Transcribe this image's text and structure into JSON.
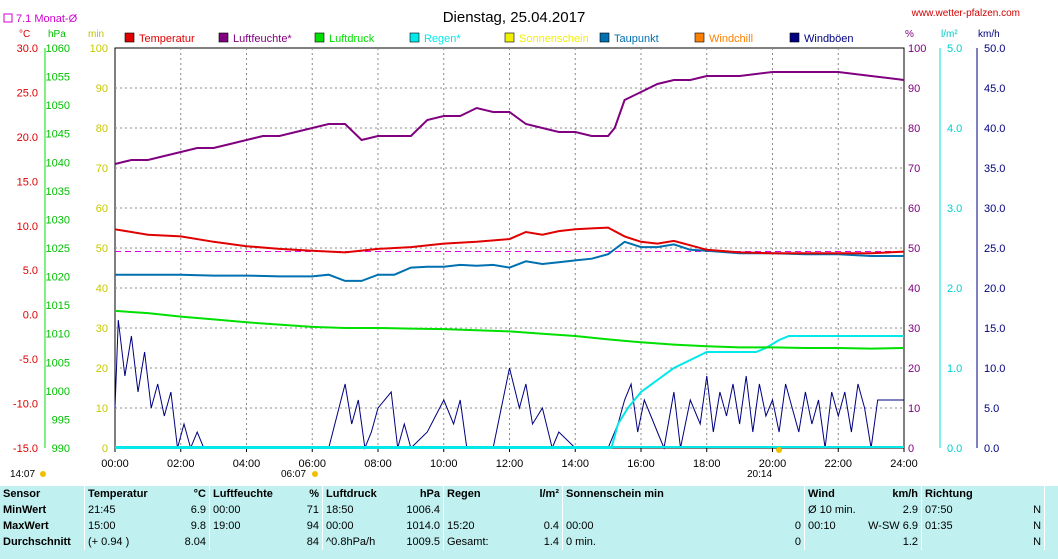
{
  "header": {
    "title": "Dienstag, 25.04.2017",
    "website": "www.wetter-pfalzen.com",
    "monthly_avg_label": "7.1 Monat-Ø"
  },
  "axis_units": {
    "temp": "°C",
    "pressure": "hPa",
    "minutes": "min",
    "humidity": "%",
    "rain": "l/m²",
    "wind": "km/h"
  },
  "axis_ticks": {
    "temp": [
      "30.0",
      "25.0",
      "20.0",
      "15.0",
      "10.0",
      "5.0",
      "0.0",
      "-5.0",
      "-10.0",
      "-15.0"
    ],
    "pressure": [
      "1060",
      "1055",
      "1050",
      "1045",
      "1040",
      "1035",
      "1030",
      "1025",
      "1020",
      "1015",
      "1010",
      "1005",
      "1000",
      "995",
      "990"
    ],
    "minutes": [
      "100",
      "90",
      "80",
      "70",
      "60",
      "50",
      "40",
      "30",
      "20",
      "10",
      "0"
    ],
    "humidity": [
      "100",
      "90",
      "80",
      "70",
      "60",
      "50",
      "40",
      "30",
      "20",
      "10",
      "0"
    ],
    "rain": [
      "5.0",
      "4.0",
      "3.0",
      "2.0",
      "1.0",
      "0.0"
    ],
    "wind": [
      "50.0",
      "45.0",
      "40.0",
      "35.0",
      "30.0",
      "25.0",
      "20.0",
      "15.0",
      "10.0",
      "5.0",
      "0.0"
    ],
    "time": [
      "00:00",
      "02:00",
      "04:00",
      "06:00",
      "08:00",
      "10:00",
      "12:00",
      "14:00",
      "16:00",
      "18:00",
      "20:00",
      "22:00",
      "24:00"
    ]
  },
  "sun_markers": {
    "sunrise": "06:07",
    "sunset": "20:14",
    "sunshine_start": "14:07"
  },
  "legend": [
    {
      "label": "Temperatur",
      "color": "#e00000"
    },
    {
      "label": "Luftfeuchte*",
      "color": "#800080"
    },
    {
      "label": "Luftdruck",
      "color": "#00e000"
    },
    {
      "label": "Regen*",
      "color": "#00e8e8"
    },
    {
      "label": "Sonnenschein",
      "color": "#f0f000"
    },
    {
      "label": "Taupunkt",
      "color": "#0070b0"
    },
    {
      "label": "Windchill",
      "color": "#ff8000"
    },
    {
      "label": "Windböen",
      "color": "#000080"
    }
  ],
  "chart_data": {
    "type": "line",
    "x_range_hours": [
      0,
      24
    ],
    "grid": true,
    "reference_lines": [
      {
        "name": "7.1 Monat-Ø",
        "axis": "temp",
        "value": 7.1
      }
    ],
    "series": [
      {
        "name": "Temperatur",
        "axis": "temp",
        "x": [
          0,
          1,
          2,
          3,
          4,
          5,
          6,
          7,
          8,
          9,
          10,
          11,
          12,
          12.5,
          13,
          13.5,
          14,
          14.5,
          15,
          15.5,
          16,
          16.5,
          17,
          17.5,
          18,
          19,
          20,
          21,
          22,
          23,
          24
        ],
        "y": [
          9.6,
          9.0,
          8.8,
          8.2,
          7.7,
          7.4,
          7.2,
          7.0,
          7.4,
          7.6,
          8.0,
          8.2,
          8.5,
          9.3,
          9.0,
          9.4,
          9.6,
          9.7,
          9.8,
          8.8,
          8.2,
          8.0,
          8.3,
          7.8,
          7.3,
          7.0,
          6.9,
          6.9,
          6.9,
          6.9,
          7.1
        ]
      },
      {
        "name": "Luftfeuchte*",
        "axis": "humidity",
        "x": [
          0,
          0.5,
          1,
          1.5,
          2,
          2.5,
          3,
          3.5,
          4,
          4.5,
          5,
          5.5,
          6,
          6.5,
          7,
          7.5,
          8,
          8.5,
          9,
          9.5,
          10,
          10.5,
          11,
          11.5,
          12,
          12.5,
          13,
          13.5,
          14,
          14.5,
          15,
          15.2,
          15.5,
          16,
          16.5,
          17,
          17.5,
          18,
          19,
          20,
          21,
          22,
          23,
          24
        ],
        "y": [
          71,
          72,
          72,
          73,
          74,
          75,
          75,
          76,
          77,
          78,
          78,
          79,
          80,
          81,
          81,
          77,
          78,
          78,
          78,
          82,
          83,
          83,
          85,
          84,
          84,
          81,
          80,
          79,
          79,
          78,
          78,
          80,
          87,
          89,
          91,
          92,
          92,
          93,
          93,
          94,
          94,
          94,
          93,
          92
        ]
      },
      {
        "name": "Luftdruck",
        "axis": "pressure",
        "x": [
          0,
          1,
          2,
          3,
          4,
          5,
          6,
          7,
          8,
          9,
          10,
          11,
          12,
          13,
          14,
          15,
          16,
          17,
          18,
          19,
          20,
          21,
          22,
          23,
          24
        ],
        "y": [
          1014.0,
          1013.6,
          1013.0,
          1012.5,
          1012.0,
          1011.6,
          1011.2,
          1011.0,
          1011.0,
          1010.9,
          1010.8,
          1010.6,
          1010.4,
          1010.0,
          1009.6,
          1009.0,
          1008.5,
          1008.1,
          1007.8,
          1007.6,
          1007.6,
          1007.5,
          1007.5,
          1007.4,
          1007.5
        ]
      },
      {
        "name": "Regen*",
        "axis": "rain",
        "x": [
          0,
          15.1,
          15.3,
          15.6,
          16,
          16.5,
          17,
          17.5,
          18,
          18.5,
          19,
          19.5,
          19.8,
          20.2,
          20.5,
          21,
          22,
          23,
          24
        ],
        "y": [
          0,
          0,
          0.3,
          0.5,
          0.7,
          0.85,
          1.0,
          1.1,
          1.2,
          1.2,
          1.2,
          1.2,
          1.25,
          1.35,
          1.4,
          1.4,
          1.4,
          1.4,
          1.4
        ]
      },
      {
        "name": "Taupunkt",
        "axis": "temp",
        "x": [
          0,
          1,
          2,
          3,
          4,
          5,
          6,
          6.5,
          7,
          7.5,
          8,
          8.5,
          9,
          9.5,
          10,
          10.5,
          11,
          11.5,
          12,
          12.5,
          13,
          13.5,
          14,
          14.5,
          15,
          15.5,
          16,
          16.5,
          17,
          17.5,
          18,
          19,
          20,
          21,
          22,
          23,
          24
        ],
        "y": [
          4.5,
          4.5,
          4.5,
          4.4,
          4.4,
          4.3,
          4.3,
          4.5,
          3.8,
          3.8,
          4.5,
          4.5,
          5.3,
          5.4,
          5.4,
          5.6,
          5.5,
          5.6,
          5.3,
          6.0,
          5.7,
          5.9,
          6.1,
          6.3,
          6.8,
          8.2,
          7.6,
          7.6,
          7.9,
          7.3,
          7.2,
          6.9,
          6.9,
          6.8,
          6.8,
          6.6,
          6.6
        ]
      },
      {
        "name": "Windböen",
        "axis": "wind",
        "x": [
          0,
          0.1,
          0.3,
          0.5,
          0.7,
          0.9,
          1.1,
          1.3,
          1.5,
          1.7,
          1.9,
          2.1,
          2.3,
          2.5,
          2.7,
          3,
          6.5,
          7,
          7.2,
          7.4,
          7.6,
          7.8,
          8,
          8.4,
          8.6,
          8.8,
          9,
          9.5,
          10,
          10.3,
          10.5,
          10.7,
          11,
          11.5,
          12,
          12.3,
          12.5,
          12.7,
          13,
          13.3,
          13.5,
          14,
          15,
          15.3,
          15.5,
          15.7,
          15.9,
          16.1,
          16.3,
          16.5,
          16.7,
          17,
          17.2,
          17.5,
          17.8,
          18,
          18.2,
          18.4,
          18.6,
          18.8,
          19,
          19.2,
          19.4,
          19.6,
          19.8,
          20,
          20.2,
          20.4,
          20.6,
          20.8,
          21,
          21.2,
          21.4,
          21.6,
          21.8,
          22,
          22.2,
          22.4,
          22.6,
          22.8,
          23,
          23.2,
          23.4,
          23.6,
          23.8,
          24
        ],
        "y": [
          5,
          16,
          9,
          14,
          7,
          12,
          5,
          8,
          4,
          7,
          0,
          3,
          0,
          2,
          0,
          0,
          0,
          8,
          3,
          6,
          0,
          2,
          5,
          7,
          0,
          3,
          0,
          2,
          6,
          3,
          6,
          0,
          0,
          0,
          10,
          5,
          8,
          3,
          5,
          0,
          2,
          0,
          0,
          3,
          6,
          8,
          2,
          6,
          4,
          2,
          0,
          7,
          0,
          6,
          3,
          9,
          2,
          7,
          4,
          8,
          3,
          9,
          2,
          8,
          4,
          6,
          2,
          8,
          5,
          2,
          7,
          3,
          6,
          0,
          7,
          4,
          7,
          2,
          8,
          5,
          0,
          6,
          6,
          6,
          6,
          6
        ]
      }
    ]
  },
  "stats": {
    "headers": {
      "sensor": "Sensor",
      "temp": "Temperatur",
      "temp_unit": "°C",
      "hum": "Luftfeuchte",
      "hum_unit": "%",
      "press": "Luftdruck",
      "press_unit": "hPa",
      "rain": "Regen",
      "rain_unit": "l/m²",
      "sun": "Sonnenschein min",
      "wind": "Wind",
      "wind_unit": "km/h",
      "dir": "Richtung"
    },
    "rows": [
      {
        "label": "MinWert",
        "temp_time": "21:45",
        "temp_val": "6.9",
        "hum_time": "00:00",
        "hum_val": "71",
        "press_time": "18:50",
        "press_val": "1006.4",
        "rain_time": "",
        "rain_val": "",
        "sun_time": "",
        "sun_val": "",
        "wind_time": "Ø 10 min.",
        "wind_val": "2.9",
        "dir_time": "07:50",
        "dir_val": "N"
      },
      {
        "label": "MaxWert",
        "temp_time": "15:00",
        "temp_val": "9.8",
        "hum_time": "19:00",
        "hum_val": "94",
        "press_time": "00:00",
        "press_val": "1014.0",
        "rain_time": "15:20",
        "rain_val": "0.4",
        "sun_time": "00:00",
        "sun_val": "0",
        "wind_time": "00:10",
        "wind_val": "W-SW 6.9",
        "dir_time": "01:35",
        "dir_val": "N"
      },
      {
        "label": "Durchschnitt",
        "temp_time": "(+ 0.94 )",
        "temp_val": "8.04",
        "hum_time": "",
        "hum_val": "84",
        "press_time": "^0.8hPa/h",
        "press_val": "1009.5",
        "rain_time": "Gesamt:",
        "rain_val": "1.4",
        "sun_time": "0 min.",
        "sun_val": "0",
        "wind_time": "",
        "wind_val": "1.2",
        "dir_time": "",
        "dir_val": "N"
      }
    ]
  }
}
